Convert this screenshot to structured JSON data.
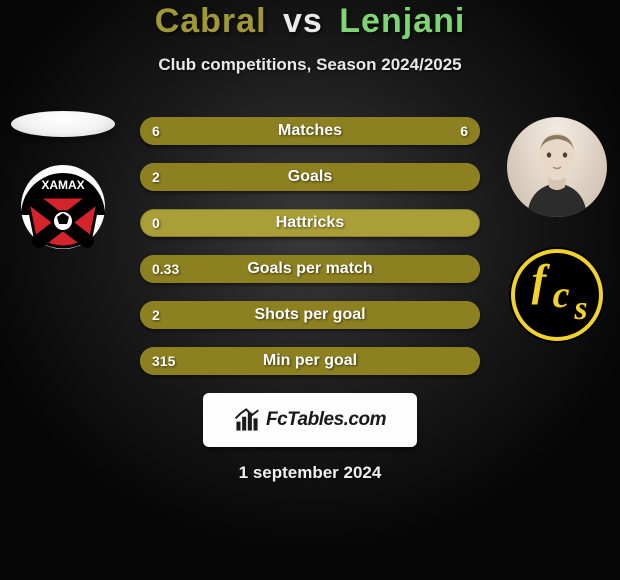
{
  "title": {
    "player1": "Cabral",
    "vs": "vs",
    "player2": "Lenjani",
    "color_player1": "#a09735",
    "color_vs": "#e9e9e9",
    "color_player2": "#7fd473"
  },
  "subtitle": "Club competitions, Season 2024/2025",
  "bars": {
    "base_color": "#aa9e37",
    "left_fill_color": "#8c8020",
    "right_fill_color": "#8c8020",
    "items": [
      {
        "label": "Matches",
        "left_val": "6",
        "right_val": "6",
        "left_pct": 50,
        "right_pct": 50
      },
      {
        "label": "Goals",
        "left_val": "2",
        "right_val": "",
        "left_pct": 100,
        "right_pct": 0
      },
      {
        "label": "Hattricks",
        "left_val": "0",
        "right_val": "",
        "left_pct": 0,
        "right_pct": 0
      },
      {
        "label": "Goals per match",
        "left_val": "0.33",
        "right_val": "",
        "left_pct": 100,
        "right_pct": 0
      },
      {
        "label": "Shots per goal",
        "left_val": "2",
        "right_val": "",
        "left_pct": 100,
        "right_pct": 0
      },
      {
        "label": "Min per goal",
        "left_val": "315",
        "right_val": "",
        "left_pct": 100,
        "right_pct": 0
      }
    ]
  },
  "club_left": {
    "name": "Xamax",
    "bg": "#ffffff",
    "shield_top": "#000000",
    "shield_red": "#d4232a",
    "text": "XAMAX",
    "ball": "#ffffff"
  },
  "club_right": {
    "name": "FCS",
    "bg": "#000000",
    "ring": "#f3d22a",
    "letters": "FCS",
    "letter_color": "#f3d22a"
  },
  "brand": {
    "text": "FcTables.com",
    "bar_colors": [
      "#1a1a1a",
      "#1a1a1a",
      "#1a1a1a",
      "#1a1a1a"
    ]
  },
  "date": "1 september 2024"
}
